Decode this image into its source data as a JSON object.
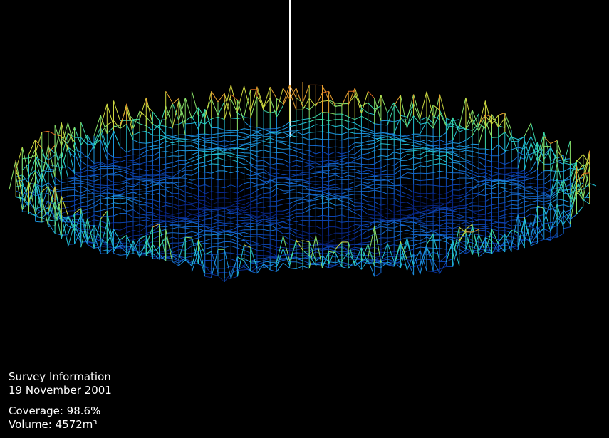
{
  "survey_info": {
    "title": "Survey Information",
    "date": "19 November 2001",
    "coverage": "Coverage: 98.6%",
    "volume": "Volume: 4572m³"
  }
}
